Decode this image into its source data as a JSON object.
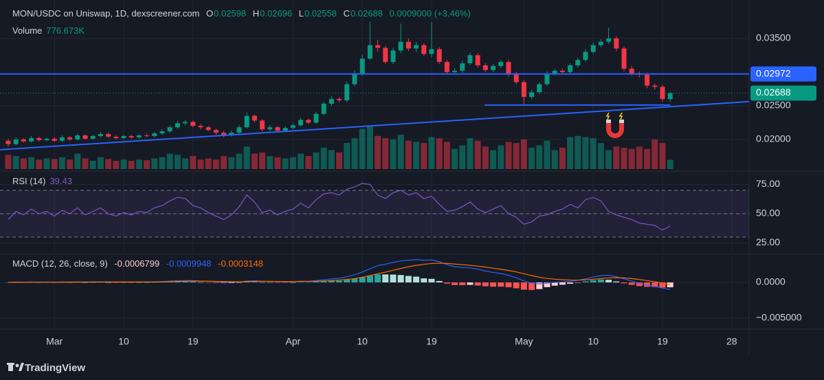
{
  "chart_data": [
    {
      "type": "candlestick",
      "title": "MON/USDC on Uniswap, 1D, dexscreener.com",
      "o_label": "O",
      "o": "0.02598",
      "h_label": "H",
      "h": "0.02696",
      "l_label": "L",
      "l": "0.02558",
      "c_label": "C",
      "c": "0.02688",
      "change": "0.0009000 (+3.46%)",
      "volume_label": "Volume",
      "volume_text": "776.673K",
      "up_color": "#089981",
      "down_color": "#f23645",
      "open": [
        0.0198,
        0.0193,
        0.02,
        0.0197,
        0.0202,
        0.0199,
        0.0201,
        0.0198,
        0.0203,
        0.02,
        0.0206,
        0.0201,
        0.0205,
        0.0208,
        0.0204,
        0.0202,
        0.0205,
        0.0203,
        0.0206,
        0.0205,
        0.0209,
        0.0212,
        0.0218,
        0.0224,
        0.0226,
        0.022,
        0.0218,
        0.0214,
        0.021,
        0.0206,
        0.021,
        0.0218,
        0.0235,
        0.0228,
        0.0215,
        0.0218,
        0.0213,
        0.0217,
        0.0221,
        0.0229,
        0.0225,
        0.0238,
        0.0253,
        0.026,
        0.0258,
        0.0282,
        0.0298,
        0.032,
        0.034,
        0.0336,
        0.0315,
        0.0332,
        0.0345,
        0.0335,
        0.034,
        0.0327,
        0.0334,
        0.0315,
        0.03,
        0.0302,
        0.0313,
        0.0325,
        0.031,
        0.0303,
        0.0309,
        0.0315,
        0.0297,
        0.0285,
        0.0263,
        0.027,
        0.0282,
        0.0298,
        0.0302,
        0.03,
        0.031,
        0.0318,
        0.033,
        0.034,
        0.0345,
        0.035,
        0.0335,
        0.0305,
        0.0298,
        0.0296,
        0.028,
        0.0278,
        0.02598
      ],
      "high": [
        0.0201,
        0.0203,
        0.0202,
        0.0205,
        0.0204,
        0.0203,
        0.0203,
        0.0206,
        0.0205,
        0.0209,
        0.0208,
        0.0207,
        0.0211,
        0.021,
        0.0206,
        0.0207,
        0.0207,
        0.0208,
        0.0209,
        0.0211,
        0.0215,
        0.0221,
        0.0227,
        0.0229,
        0.0228,
        0.0223,
        0.022,
        0.0216,
        0.0212,
        0.0213,
        0.0221,
        0.024,
        0.0237,
        0.023,
        0.0221,
        0.022,
        0.022,
        0.0224,
        0.0232,
        0.0231,
        0.0241,
        0.0256,
        0.0264,
        0.0263,
        0.0286,
        0.0303,
        0.0326,
        0.0375,
        0.0348,
        0.0339,
        0.0336,
        0.0372,
        0.035,
        0.0345,
        0.0343,
        0.0374,
        0.0337,
        0.0318,
        0.0306,
        0.0317,
        0.0329,
        0.0328,
        0.0313,
        0.0312,
        0.0318,
        0.0318,
        0.03,
        0.0288,
        0.0274,
        0.0285,
        0.0301,
        0.0305,
        0.0305,
        0.0313,
        0.0321,
        0.0334,
        0.0344,
        0.0349,
        0.0366,
        0.0353,
        0.0338,
        0.0309,
        0.0301,
        0.0299,
        0.0283,
        0.0281,
        0.02696
      ],
      "low": [
        0.0189,
        0.0191,
        0.0195,
        0.0195,
        0.0197,
        0.0197,
        0.0196,
        0.0196,
        0.0198,
        0.0198,
        0.0199,
        0.0199,
        0.0203,
        0.0202,
        0.02,
        0.02,
        0.0201,
        0.0201,
        0.0203,
        0.0203,
        0.0207,
        0.021,
        0.0216,
        0.0221,
        0.0218,
        0.0215,
        0.0212,
        0.0207,
        0.0203,
        0.0204,
        0.0208,
        0.0216,
        0.0225,
        0.0212,
        0.0212,
        0.021,
        0.0211,
        0.0215,
        0.0219,
        0.0222,
        0.0223,
        0.0236,
        0.025,
        0.0255,
        0.0255,
        0.0279,
        0.0295,
        0.0318,
        0.033,
        0.0312,
        0.0312,
        0.0328,
        0.0331,
        0.033,
        0.0324,
        0.0322,
        0.0312,
        0.0296,
        0.0297,
        0.0299,
        0.031,
        0.0306,
        0.03,
        0.03,
        0.0306,
        0.0293,
        0.0282,
        0.0251,
        0.026,
        0.0267,
        0.0279,
        0.0295,
        0.0297,
        0.0297,
        0.0307,
        0.0315,
        0.0327,
        0.0337,
        0.0342,
        0.0331,
        0.0301,
        0.0295,
        0.0292,
        0.0276,
        0.0274,
        0.0256,
        0.02558
      ],
      "close": [
        0.0193,
        0.02,
        0.0197,
        0.0202,
        0.0199,
        0.0201,
        0.0198,
        0.0203,
        0.02,
        0.0206,
        0.0201,
        0.0205,
        0.0208,
        0.0204,
        0.0202,
        0.0205,
        0.0203,
        0.0206,
        0.0205,
        0.0209,
        0.0212,
        0.0218,
        0.0224,
        0.0226,
        0.022,
        0.0218,
        0.0214,
        0.021,
        0.0206,
        0.021,
        0.0218,
        0.0235,
        0.0228,
        0.0215,
        0.0218,
        0.0213,
        0.0217,
        0.0221,
        0.0229,
        0.0225,
        0.0238,
        0.0253,
        0.026,
        0.0258,
        0.0282,
        0.0298,
        0.032,
        0.034,
        0.0336,
        0.0315,
        0.0332,
        0.0345,
        0.0335,
        0.034,
        0.0327,
        0.0334,
        0.0315,
        0.03,
        0.0302,
        0.0313,
        0.0325,
        0.031,
        0.0303,
        0.0309,
        0.0315,
        0.0297,
        0.0285,
        0.0263,
        0.027,
        0.0282,
        0.0298,
        0.0302,
        0.03,
        0.031,
        0.0318,
        0.033,
        0.034,
        0.0345,
        0.035,
        0.0335,
        0.0305,
        0.0298,
        0.0296,
        0.028,
        0.0278,
        0.02598,
        0.02688
      ],
      "volume": [
        1200000,
        1100000,
        900000,
        1000000,
        800000,
        900000,
        850000,
        1000000,
        800000,
        1300000,
        900000,
        700000,
        1000000,
        850000,
        700000,
        800000,
        700000,
        800000,
        750000,
        900000,
        1000000,
        1300000,
        1200000,
        900000,
        1100000,
        800000,
        900000,
        800000,
        1100000,
        1000000,
        1300000,
        1900000,
        1300000,
        1400000,
        1100000,
        1000000,
        900000,
        1000000,
        1300000,
        1100000,
        1400000,
        1800000,
        1600000,
        1400000,
        2200000,
        2600000,
        3400000,
        3600000,
        2800000,
        2600000,
        2500000,
        2900000,
        2400000,
        2300000,
        2200000,
        2700000,
        2600000,
        2300000,
        1700000,
        2000000,
        2600000,
        2400000,
        1900000,
        1600000,
        2000000,
        2300000,
        2200000,
        2500000,
        1800000,
        2000000,
        2400000,
        1600000,
        1800000,
        2700000,
        2800000,
        2700000,
        2600000,
        2200000,
        1600000,
        1900000,
        1800000,
        1700000,
        1900000,
        1700000,
        2500000,
        2200000,
        776673
      ],
      "ylim": [
        0.0156,
        0.0407
      ],
      "yticks": [
        {
          "value": 0.02,
          "label": "0.02000"
        },
        {
          "value": 0.025,
          "label": "0.02500"
        },
        {
          "value": 0.035,
          "label": "0.03500"
        }
      ],
      "xlim": [
        -1.07,
        96.25
      ],
      "xticks": [
        {
          "value": 6,
          "label": "Mar"
        },
        {
          "value": 15,
          "label": "10"
        },
        {
          "value": 24,
          "label": "19"
        },
        {
          "value": 37,
          "label": "Apr"
        },
        {
          "value": 46,
          "label": "10"
        },
        {
          "value": 55,
          "label": "19"
        },
        {
          "value": 67,
          "label": "May"
        },
        {
          "value": 76,
          "label": "10"
        },
        {
          "value": 85,
          "label": "19"
        },
        {
          "value": 94,
          "label": "28"
        }
      ],
      "grid": true,
      "horizontal_line": {
        "value": 0.02972,
        "label": "0.02972",
        "color": "#2962ff"
      },
      "last_price": {
        "value": 0.02688,
        "label": "0.02688",
        "color": "#089981"
      },
      "trend_lines": [
        {
          "x": [
            -1.07,
            96.25
          ],
          "y": [
            0.01847,
            0.02561
          ],
          "color": "#2962ff"
        },
        {
          "x": [
            61.9,
            86
          ],
          "y": [
            0.0251,
            0.0251
          ],
          "color": "#2962ff"
        }
      ]
    },
    {
      "type": "line",
      "title": "RSI (14)",
      "value_label": "39.43",
      "color": "#7e57c2",
      "values": [
        45,
        52,
        49,
        54,
        50,
        52,
        48,
        53,
        50,
        55,
        49,
        52,
        55,
        50,
        48,
        51,
        49,
        52,
        51,
        55,
        57,
        61,
        64,
        63,
        57,
        55,
        51,
        48,
        45,
        49,
        56,
        66,
        60,
        51,
        53,
        49,
        52,
        54,
        59,
        55,
        62,
        67,
        68,
        66,
        71,
        73,
        76,
        75,
        66,
        63,
        68,
        70,
        66,
        68,
        63,
        65,
        58,
        52,
        53,
        56,
        60,
        54,
        51,
        54,
        57,
        50,
        47,
        41,
        43,
        48,
        49,
        52,
        54,
        58,
        55,
        62,
        64,
        61,
        52,
        49,
        47,
        45,
        42,
        41,
        40,
        36,
        39.43
      ],
      "ylim": [
        16.5,
        84.7
      ],
      "yticks": [
        {
          "value": 25,
          "label": "25.00"
        },
        {
          "value": 50,
          "label": "50.00"
        },
        {
          "value": 75,
          "label": "75.00"
        }
      ],
      "bands": [
        30,
        50,
        70
      ]
    },
    {
      "type": "macd",
      "title": "MACD (12, 26, close, 9)",
      "histogram": {
        "label": "-0.0006799",
        "colors": [
          "#26a69a",
          "#b2dfdb",
          "#ff5252",
          "#ffcdd2"
        ],
        "label_color": "#ffcdd2",
        "values": [
          0,
          4e-05,
          2e-05,
          4e-05,
          2e-05,
          3e-05,
          1e-05,
          2e-05,
          1e-05,
          3e-05,
          1e-05,
          1e-05,
          3e-05,
          1e-05,
          -1e-05,
          0,
          -1e-05,
          0,
          0,
          3e-05,
          4e-05,
          8e-05,
          0.00011,
          0.00011,
          6e-05,
          2e-05,
          -2e-05,
          -6e-05,
          -0.0001,
          -9e-05,
          -2e-05,
          8e-05,
          9e-05,
          2e-05,
          1e-05,
          -3e-05,
          -3e-05,
          -1e-05,
          3e-05,
          3e-05,
          9e-05,
          0.00017,
          0.00023,
          0.00025,
          0.00038,
          0.00053,
          0.00072,
          0.00095,
          0.00113,
          0.00112,
          0.0011,
          0.00104,
          0.00091,
          0.00081,
          0.00057,
          0.0005,
          0.0002,
          -0.00016,
          -0.00037,
          -0.00038,
          -0.00034,
          -0.00043,
          -0.00054,
          -0.00059,
          -0.00059,
          -0.00067,
          -0.00082,
          -0.00102,
          -0.00106,
          -0.00093,
          -0.00066,
          -0.00045,
          -0.00032,
          -0.00018,
          -2e-05,
          0.00014,
          0.00031,
          0.00041,
          0.00037,
          0.00014,
          -0.00013,
          -0.00034,
          -0.00051,
          -0.00061,
          -0.00065,
          -0.00072,
          -0.0006799
        ]
      },
      "macd": {
        "label": "-0.0009948",
        "color": "#2962ff",
        "values": [
          0,
          5e-05,
          3e-05,
          6e-05,
          5e-05,
          6e-05,
          4e-05,
          6e-05,
          5e-05,
          8e-05,
          6e-05,
          7e-05,
          9e-05,
          7e-05,
          5e-05,
          6e-05,
          5e-05,
          6e-05,
          6e-05,
          9e-05,
          0.00012,
          0.00018,
          0.00024,
          0.00027,
          0.00024,
          0.0002,
          0.00015,
          9e-05,
          3e-05,
          2e-05,
          8e-05,
          0.0002,
          0.00023,
          0.00017,
          0.00016,
          0.00011,
          0.0001,
          0.00012,
          0.00017,
          0.00017,
          0.00025,
          0.00038,
          0.0005,
          0.00058,
          0.0008,
          0.00108,
          0.00145,
          0.00192,
          0.00235,
          0.00255,
          0.0028,
          0.003,
          0.0031,
          0.0032,
          0.0031,
          0.00315,
          0.0029,
          0.0025,
          0.0022,
          0.0021,
          0.00205,
          0.00185,
          0.0016,
          0.0014,
          0.00125,
          0.001,
          0.00065,
          0.0002,
          -0.0001,
          -0.0002,
          -0.0001,
          0,
          5e-05,
          0.00015,
          0.0003,
          0.0005,
          0.00075,
          0.00095,
          0.001,
          0.0008,
          0.0005,
          0.0002,
          -0.0001,
          -0.00035,
          -0.00055,
          -0.0008,
          -0.0009948
        ]
      },
      "signal": {
        "label": "-0.0003148",
        "color": "#ff6d00",
        "values": [
          0,
          1e-05,
          1e-05,
          2e-05,
          3e-05,
          3e-05,
          3e-05,
          4e-05,
          4e-05,
          5e-05,
          5e-05,
          6e-05,
          6e-05,
          6e-05,
          6e-05,
          6e-05,
          6e-05,
          6e-05,
          6e-05,
          6e-05,
          8e-05,
          0.0001,
          0.00013,
          0.00016,
          0.00018,
          0.00018,
          0.00017,
          0.00015,
          0.00013,
          0.00011,
          0.0001,
          0.00012,
          0.00014,
          0.00015,
          0.00015,
          0.00014,
          0.00013,
          0.00013,
          0.00014,
          0.00014,
          0.00016,
          0.00021,
          0.00027,
          0.00033,
          0.00042,
          0.00055,
          0.00073,
          0.00097,
          0.00122,
          0.00143,
          0.0017,
          0.00196,
          0.00219,
          0.00239,
          0.00253,
          0.00265,
          0.0027,
          0.00266,
          0.00257,
          0.00248,
          0.00239,
          0.00228,
          0.00214,
          0.00199,
          0.00184,
          0.00167,
          0.00147,
          0.00122,
          0.00096,
          0.00073,
          0.00056,
          0.00045,
          0.00037,
          0.00033,
          0.00032,
          0.00036,
          0.00044,
          0.00054,
          0.00063,
          0.00066,
          0.00063,
          0.00054,
          0.00041,
          0.00026,
          0.0001,
          -8e-05,
          -0.0003148
        ]
      },
      "ylim": [
        -0.00644,
        0.00375
      ],
      "yticks": [
        {
          "value": -0.005,
          "label": "−0.005000"
        },
        {
          "value": 0,
          "label": "0.0000"
        }
      ]
    }
  ],
  "footer": {
    "brand": "TradingView"
  }
}
